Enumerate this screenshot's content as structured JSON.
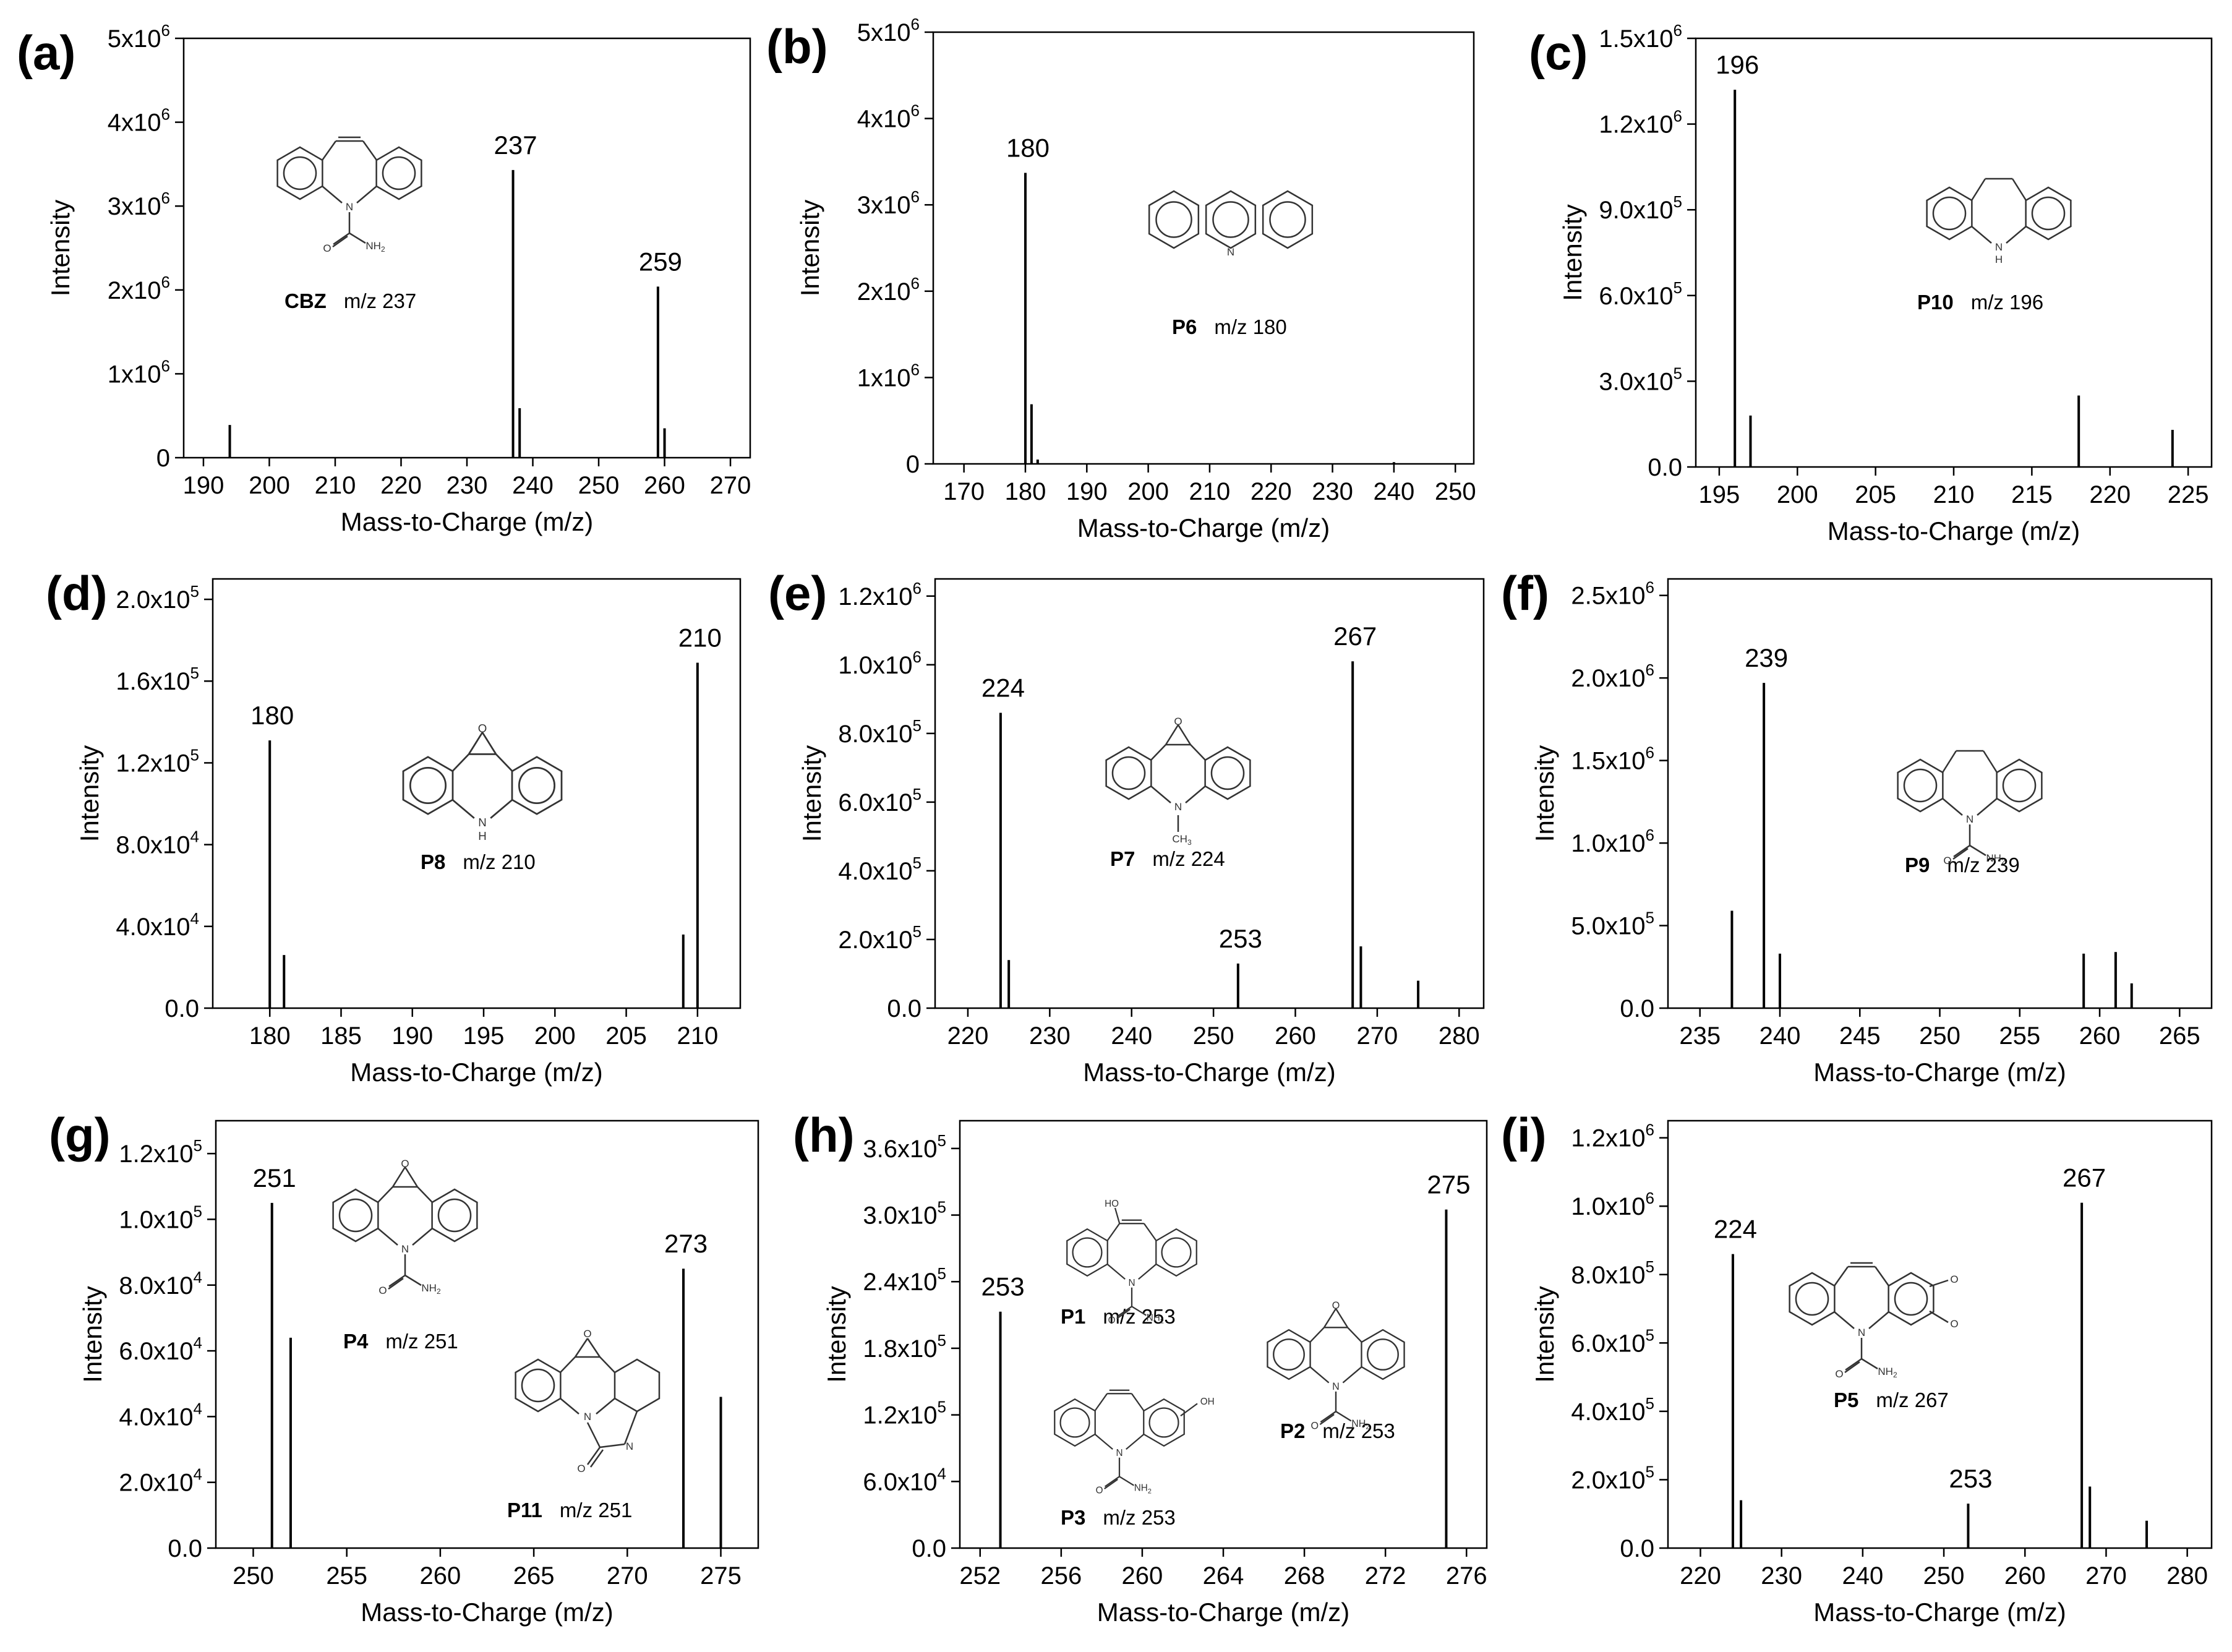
{
  "chart_data": [
    {
      "id": "a",
      "panel_label": "(a)",
      "type": "bar",
      "xlabel": "Mass-to-Charge (m/z)",
      "ylabel": "Intensity",
      "xlim": [
        187,
        273
      ],
      "ylim": [
        0,
        5000000
      ],
      "xticks": [
        190,
        200,
        210,
        220,
        230,
        240,
        250,
        260,
        270
      ],
      "yticks": [
        0,
        1000000,
        2000000,
        3000000,
        4000000,
        5000000
      ],
      "ytick_labels": [
        {
          "m": "0",
          "e": ""
        },
        {
          "m": "1x10",
          "e": "6"
        },
        {
          "m": "2x10",
          "e": "6"
        },
        {
          "m": "3x10",
          "e": "6"
        },
        {
          "m": "4x10",
          "e": "6"
        },
        {
          "m": "5x10",
          "e": "6"
        }
      ],
      "peaks": [
        {
          "x": 194,
          "y": 390000
        },
        {
          "x": 237,
          "y": 3430000
        },
        {
          "x": 238,
          "y": 590000
        },
        {
          "x": 259,
          "y": 2040000
        },
        {
          "x": 260,
          "y": 350000
        }
      ],
      "peak_labels": [
        {
          "x": 237,
          "y": 3430000,
          "text": "237"
        },
        {
          "x": 259,
          "y": 2040000,
          "text": "259"
        }
      ],
      "structures": [
        {
          "shape": "cbz",
          "name": "CBZ",
          "mz": "m/z 237"
        }
      ]
    },
    {
      "id": "b",
      "panel_label": "(b)",
      "type": "bar",
      "xlabel": "Mass-to-Charge (m/z)",
      "ylabel": "Intensity",
      "xlim": [
        165,
        253
      ],
      "ylim": [
        0,
        5000000
      ],
      "xticks": [
        170,
        180,
        190,
        200,
        210,
        220,
        230,
        240,
        250
      ],
      "yticks": [
        0,
        1000000,
        2000000,
        3000000,
        4000000,
        5000000
      ],
      "ytick_labels": [
        {
          "m": "0",
          "e": ""
        },
        {
          "m": "1x10",
          "e": "6"
        },
        {
          "m": "2x10",
          "e": "6"
        },
        {
          "m": "3x10",
          "e": "6"
        },
        {
          "m": "4x10",
          "e": "6"
        },
        {
          "m": "5x10",
          "e": "6"
        }
      ],
      "peaks": [
        {
          "x": 180,
          "y": 3370000
        },
        {
          "x": 181,
          "y": 690000
        },
        {
          "x": 182,
          "y": 50000
        },
        {
          "x": 240,
          "y": 20000
        }
      ],
      "peak_labels": [
        {
          "x": 180,
          "y": 3370000,
          "text": "180"
        }
      ],
      "structures": [
        {
          "shape": "acridine",
          "name": "P6",
          "mz": "m/z 180"
        }
      ]
    },
    {
      "id": "c",
      "panel_label": "(c)",
      "type": "bar",
      "xlabel": "Mass-to-Charge (m/z)",
      "ylabel": "Intensity",
      "xlim": [
        193.5,
        226.5
      ],
      "ylim": [
        0,
        1500000
      ],
      "xticks": [
        195,
        200,
        205,
        210,
        215,
        220,
        225
      ],
      "yticks": [
        0,
        300000,
        600000,
        900000,
        1200000,
        1500000
      ],
      "ytick_labels": [
        {
          "m": "0.0",
          "e": ""
        },
        {
          "m": "3.0x10",
          "e": "5"
        },
        {
          "m": "6.0x10",
          "e": "5"
        },
        {
          "m": "9.0x10",
          "e": "5"
        },
        {
          "m": "1.2x10",
          "e": "6"
        },
        {
          "m": "1.5x10",
          "e": "6"
        }
      ],
      "peaks": [
        {
          "x": 196,
          "y": 1320000
        },
        {
          "x": 197,
          "y": 180000
        },
        {
          "x": 218,
          "y": 250000
        },
        {
          "x": 224,
          "y": 130000
        }
      ],
      "peak_labels": [
        {
          "x": 196,
          "y": 1320000,
          "text": "196"
        }
      ],
      "structures": [
        {
          "shape": "iminodibenzyl",
          "name": "P10",
          "mz": "m/z 196"
        }
      ]
    },
    {
      "id": "d",
      "panel_label": "(d)",
      "type": "bar",
      "xlabel": "Mass-to-Charge (m/z)",
      "ylabel": "Intensity",
      "xlim": [
        176,
        213
      ],
      "ylim": [
        0,
        210000
      ],
      "xticks": [
        180,
        185,
        190,
        195,
        200,
        205,
        210
      ],
      "yticks": [
        0,
        40000,
        80000,
        120000,
        160000,
        200000
      ],
      "ytick_labels": [
        {
          "m": "0.0",
          "e": ""
        },
        {
          "m": "4.0x10",
          "e": "4"
        },
        {
          "m": "8.0x10",
          "e": "4"
        },
        {
          "m": "1.2x10",
          "e": "5"
        },
        {
          "m": "1.6x10",
          "e": "5"
        },
        {
          "m": "2.0x10",
          "e": "5"
        }
      ],
      "peaks": [
        {
          "x": 180,
          "y": 131000
        },
        {
          "x": 181,
          "y": 26000
        },
        {
          "x": 209,
          "y": 36000
        },
        {
          "x": 210,
          "y": 169000
        }
      ],
      "peak_labels": [
        {
          "x": 180,
          "y": 131000,
          "text": "180"
        },
        {
          "x": 210,
          "y": 169000,
          "text": "210"
        }
      ],
      "structures": [
        {
          "shape": "epoxy_nh",
          "name": "P8",
          "mz": "m/z 210"
        }
      ]
    },
    {
      "id": "e",
      "panel_label": "(e)",
      "type": "bar",
      "xlabel": "Mass-to-Charge (m/z)",
      "ylabel": "Intensity",
      "xlim": [
        216,
        283
      ],
      "ylim": [
        0,
        1250000
      ],
      "xticks": [
        220,
        230,
        240,
        250,
        260,
        270,
        280
      ],
      "yticks": [
        0,
        200000,
        400000,
        600000,
        800000,
        1000000,
        1200000
      ],
      "ytick_labels": [
        {
          "m": "0.0",
          "e": ""
        },
        {
          "m": "2.0x10",
          "e": "5"
        },
        {
          "m": "4.0x10",
          "e": "5"
        },
        {
          "m": "6.0x10",
          "e": "5"
        },
        {
          "m": "8.0x10",
          "e": "5"
        },
        {
          "m": "1.0x10",
          "e": "6"
        },
        {
          "m": "1.2x10",
          "e": "6"
        }
      ],
      "peaks": [
        {
          "x": 224,
          "y": 860000
        },
        {
          "x": 225,
          "y": 140000
        },
        {
          "x": 253,
          "y": 130000
        },
        {
          "x": 267,
          "y": 1010000
        },
        {
          "x": 268,
          "y": 180000
        },
        {
          "x": 275,
          "y": 80000
        }
      ],
      "peak_labels": [
        {
          "x": 224,
          "y": 860000,
          "text": "224"
        },
        {
          "x": 253,
          "y": 130000,
          "text": "253"
        },
        {
          "x": 267,
          "y": 1010000,
          "text": "267"
        }
      ],
      "structures": [
        {
          "shape": "epoxy_nme",
          "name": "P7",
          "mz": "m/z 224"
        }
      ]
    },
    {
      "id": "f",
      "panel_label": "(f)",
      "type": "bar",
      "xlabel": "Mass-to-Charge (m/z)",
      "ylabel": "Intensity",
      "xlim": [
        233,
        267
      ],
      "ylim": [
        0,
        2600000
      ],
      "xticks": [
        235,
        240,
        245,
        250,
        255,
        260,
        265
      ],
      "yticks": [
        0,
        500000,
        1000000,
        1500000,
        2000000,
        2500000
      ],
      "ytick_labels": [
        {
          "m": "0.0",
          "e": ""
        },
        {
          "m": "5.0x10",
          "e": "5"
        },
        {
          "m": "1.0x10",
          "e": "6"
        },
        {
          "m": "1.5x10",
          "e": "6"
        },
        {
          "m": "2.0x10",
          "e": "6"
        },
        {
          "m": "2.5x10",
          "e": "6"
        }
      ],
      "peaks": [
        {
          "x": 237,
          "y": 590000
        },
        {
          "x": 239,
          "y": 1970000
        },
        {
          "x": 240,
          "y": 330000
        },
        {
          "x": 259,
          "y": 330000
        },
        {
          "x": 261,
          "y": 340000
        },
        {
          "x": 262,
          "y": 150000
        }
      ],
      "peak_labels": [
        {
          "x": 239,
          "y": 1970000,
          "text": "239"
        }
      ],
      "structures": [
        {
          "shape": "dihydro_cbz",
          "name": "P9",
          "mz": "m/z 239"
        }
      ]
    },
    {
      "id": "g",
      "panel_label": "(g)",
      "type": "bar",
      "xlabel": "Mass-to-Charge (m/z)",
      "ylabel": "Intensity",
      "xlim": [
        248,
        277
      ],
      "ylim": [
        0,
        130000
      ],
      "xticks": [
        250,
        255,
        260,
        265,
        270,
        275
      ],
      "yticks": [
        0,
        20000,
        40000,
        60000,
        80000,
        100000,
        120000
      ],
      "ytick_labels": [
        {
          "m": "0.0",
          "e": ""
        },
        {
          "m": "2.0x10",
          "e": "4"
        },
        {
          "m": "4.0x10",
          "e": "4"
        },
        {
          "m": "6.0x10",
          "e": "4"
        },
        {
          "m": "8.0x10",
          "e": "4"
        },
        {
          "m": "1.0x10",
          "e": "5"
        },
        {
          "m": "1.2x10",
          "e": "5"
        }
      ],
      "peaks": [
        {
          "x": 251,
          "y": 105000
        },
        {
          "x": 252,
          "y": 64000
        },
        {
          "x": 273,
          "y": 85000
        },
        {
          "x": 275,
          "y": 46000
        }
      ],
      "peak_labels": [
        {
          "x": 251,
          "y": 105000,
          "text": "251"
        },
        {
          "x": 273,
          "y": 85000,
          "text": "273"
        }
      ],
      "structures": [
        {
          "shape": "epoxy_cbz",
          "name": "P4",
          "mz": "m/z 251"
        },
        {
          "shape": "p11",
          "name": "P11",
          "mz": "m/z 251"
        }
      ]
    },
    {
      "id": "h",
      "panel_label": "(h)",
      "type": "bar",
      "xlabel": "Mass-to-Charge (m/z)",
      "ylabel": "Intensity",
      "xlim": [
        251,
        277
      ],
      "ylim": [
        0,
        385000
      ],
      "xticks": [
        252,
        256,
        260,
        264,
        268,
        272,
        276
      ],
      "yticks": [
        0,
        60000,
        120000,
        180000,
        240000,
        300000,
        360000
      ],
      "ytick_labels": [
        {
          "m": "0.0",
          "e": ""
        },
        {
          "m": "6.0x10",
          "e": "4"
        },
        {
          "m": "1.2x10",
          "e": "5"
        },
        {
          "m": "1.8x10",
          "e": "5"
        },
        {
          "m": "2.4x10",
          "e": "5"
        },
        {
          "m": "3.0x10",
          "e": "5"
        },
        {
          "m": "3.6x10",
          "e": "5"
        }
      ],
      "peaks": [
        {
          "x": 253,
          "y": 213000
        },
        {
          "x": 275,
          "y": 305000
        }
      ],
      "peak_labels": [
        {
          "x": 253,
          "y": 213000,
          "text": "253"
        },
        {
          "x": 275,
          "y": 305000,
          "text": "275"
        }
      ],
      "structures": [
        {
          "shape": "p1",
          "name": "P1",
          "mz": "m/z 253",
          "hetero": "HO"
        },
        {
          "shape": "p3",
          "name": "P3",
          "mz": "m/z 253",
          "hetero": "OH"
        },
        {
          "shape": "epoxy_cbz",
          "name": "P2",
          "mz": "m/z 253"
        }
      ]
    },
    {
      "id": "i",
      "panel_label": "(i)",
      "type": "bar",
      "xlabel": "Mass-to-Charge (m/z)",
      "ylabel": "Intensity",
      "xlim": [
        216,
        283
      ],
      "ylim": [
        0,
        1250000
      ],
      "xticks": [
        220,
        230,
        240,
        250,
        260,
        270,
        280
      ],
      "yticks": [
        0,
        200000,
        400000,
        600000,
        800000,
        1000000,
        1200000
      ],
      "ytick_labels": [
        {
          "m": "0.0",
          "e": ""
        },
        {
          "m": "2.0x10",
          "e": "5"
        },
        {
          "m": "4.0x10",
          "e": "5"
        },
        {
          "m": "6.0x10",
          "e": "5"
        },
        {
          "m": "8.0x10",
          "e": "5"
        },
        {
          "m": "1.0x10",
          "e": "6"
        },
        {
          "m": "1.2x10",
          "e": "6"
        }
      ],
      "peaks": [
        {
          "x": 224,
          "y": 860000
        },
        {
          "x": 225,
          "y": 140000
        },
        {
          "x": 253,
          "y": 130000
        },
        {
          "x": 267,
          "y": 1010000
        },
        {
          "x": 268,
          "y": 180000
        },
        {
          "x": 275,
          "y": 80000
        }
      ],
      "peak_labels": [
        {
          "x": 224,
          "y": 860000,
          "text": "224"
        },
        {
          "x": 253,
          "y": 130000,
          "text": "253"
        },
        {
          "x": 267,
          "y": 1010000,
          "text": "267"
        }
      ],
      "structures": [
        {
          "shape": "p5",
          "name": "P5",
          "mz": "m/z 267"
        }
      ]
    }
  ],
  "structure_atoms": {
    "nitrogen": "N",
    "imine_h": "H",
    "oxygen": "O",
    "amide": "NH",
    "amide_sub": "2",
    "methyl": "CH",
    "methyl_sub": "3"
  }
}
